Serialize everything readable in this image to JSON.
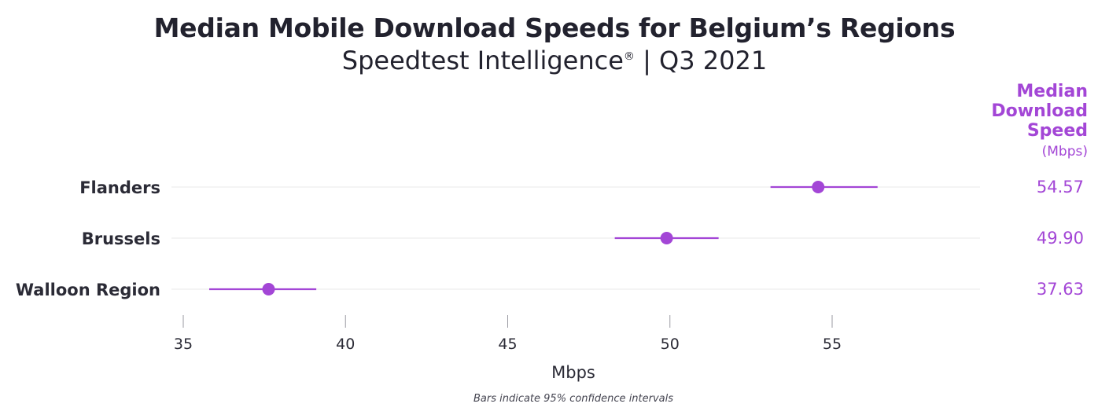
{
  "title": "Median Mobile Download Speeds for Belgium’s Regions",
  "subtitle": {
    "text": "Speedtest Intelligence",
    "mark": "®",
    "period": " | Q3 2021"
  },
  "value_header": [
    "Median",
    "Download",
    "Speed",
    "(Mbps)"
  ],
  "footnote": "Bars indicate 95% confidence intervals",
  "colors": {
    "accent": "#a346d6",
    "text": "#2b2b36",
    "grid": "#e8e8e8"
  },
  "chart_data": {
    "type": "scatter",
    "categories": [
      "Flanders",
      "Brussels",
      "Walloon Region"
    ],
    "values": [
      54.57,
      49.9,
      37.63
    ],
    "value_labels": [
      "54.57",
      "49.90",
      "37.63"
    ],
    "ci_low": [
      53.1,
      48.3,
      35.8
    ],
    "ci_high": [
      56.4,
      51.5,
      39.1
    ],
    "xlabel": "Mbps",
    "ylabel": "",
    "xlim": [
      35,
      59
    ],
    "xticks": [
      35,
      40,
      45,
      50,
      55
    ],
    "grid": true,
    "error_bars": "95% confidence intervals"
  }
}
